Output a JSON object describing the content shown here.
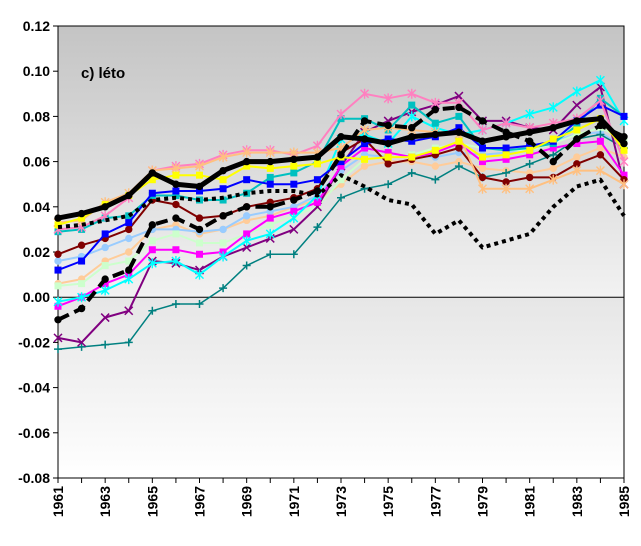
{
  "chart_data": {
    "type": "line",
    "title": "",
    "panel_label": "c) léto",
    "xlabel": "",
    "ylabel": "",
    "ylim": [
      -0.08,
      0.12
    ],
    "yticks": [
      -0.08,
      -0.06,
      -0.04,
      -0.02,
      0.0,
      0.02,
      0.04,
      0.06,
      0.08,
      0.1,
      0.12
    ],
    "ytick_labels": [
      "-0.08",
      "-0.06",
      "-0.04",
      "-0.02",
      "0.00",
      "0.02",
      "0.04",
      "0.06",
      "0.08",
      "0.10",
      "0.12"
    ],
    "x": [
      1961,
      1962,
      1963,
      1964,
      1965,
      1966,
      1967,
      1968,
      1969,
      1970,
      1971,
      1972,
      1973,
      1974,
      1975,
      1976,
      1977,
      1978,
      1979,
      1980,
      1981,
      1982,
      1983,
      1984,
      1985
    ],
    "xtick_labels": [
      "1961",
      "1963",
      "1965",
      "1967",
      "1969",
      "1971",
      "1973",
      "1975",
      "1977",
      "1979",
      "1981",
      "1983",
      "1985"
    ],
    "grid": false,
    "background_upper": "#c0c0c0",
    "background_lower": "#ffffff",
    "series": [
      {
        "color": "#000000",
        "width": 5,
        "dash": "",
        "marker": "circle",
        "values": [
          0.035,
          0.037,
          0.04,
          0.045,
          0.055,
          0.05,
          0.049,
          0.056,
          0.06,
          0.06,
          0.061,
          0.062,
          0.071,
          0.07,
          0.068,
          0.071,
          0.072,
          0.073,
          0.069,
          0.071,
          0.073,
          0.075,
          0.078,
          0.079,
          0.068
        ]
      },
      {
        "color": "#000000",
        "width": 4,
        "dash": "4,4",
        "marker": "",
        "values": [
          0.031,
          0.032,
          0.034,
          0.036,
          0.043,
          0.044,
          0.043,
          0.044,
          0.046,
          0.047,
          0.047,
          0.045,
          0.054,
          0.049,
          0.043,
          0.041,
          0.028,
          0.034,
          0.022,
          0.025,
          0.028,
          0.04,
          0.049,
          0.052,
          0.036
        ]
      },
      {
        "color": "#000000",
        "width": 4,
        "dash": "12,6",
        "marker": "circle",
        "values": [
          -0.01,
          -0.005,
          0.008,
          0.012,
          0.032,
          0.035,
          0.03,
          0.036,
          0.04,
          0.04,
          0.043,
          0.047,
          0.063,
          0.078,
          0.076,
          0.075,
          0.083,
          0.084,
          0.078,
          0.073,
          0.069,
          0.06,
          0.07,
          0.076,
          0.071
        ]
      },
      {
        "color": "#ffff00",
        "width": 2,
        "dash": "",
        "marker": "square",
        "values": [
          0.032,
          0.035,
          0.041,
          0.045,
          0.052,
          0.054,
          0.054,
          0.052,
          0.058,
          0.057,
          0.058,
          0.059,
          0.062,
          0.061,
          0.062,
          0.062,
          0.065,
          0.069,
          0.062,
          0.063,
          0.065,
          0.07,
          0.074,
          0.079,
          0.065
        ]
      },
      {
        "color": "#ffc080",
        "width": 2,
        "dash": "",
        "marker": "star",
        "values": [
          0.033,
          0.034,
          0.042,
          0.046,
          0.056,
          0.057,
          0.058,
          0.062,
          0.064,
          0.064,
          0.064,
          0.064,
          0.066,
          0.074,
          0.075,
          0.074,
          0.073,
          0.072,
          0.048,
          0.048,
          0.048,
          0.052,
          0.056,
          0.056,
          0.05
        ]
      },
      {
        "color": "#ff80c0",
        "width": 2,
        "dash": "",
        "marker": "star",
        "values": [
          0.03,
          0.031,
          0.036,
          0.044,
          0.056,
          0.058,
          0.059,
          0.063,
          0.065,
          0.065,
          0.063,
          0.067,
          0.081,
          0.09,
          0.088,
          0.09,
          0.086,
          0.086,
          0.074,
          0.077,
          0.075,
          0.077,
          0.079,
          0.087,
          0.06
        ]
      },
      {
        "color": "#0000ff",
        "width": 2,
        "dash": "",
        "marker": "square",
        "values": [
          0.012,
          0.016,
          0.028,
          0.033,
          0.046,
          0.047,
          0.047,
          0.048,
          0.052,
          0.05,
          0.05,
          0.052,
          0.06,
          0.068,
          0.07,
          0.069,
          0.071,
          0.075,
          0.066,
          0.066,
          0.067,
          0.069,
          0.078,
          0.085,
          0.08
        ]
      },
      {
        "color": "#00c0c0",
        "width": 2,
        "dash": "",
        "marker": "square",
        "values": [
          0.029,
          0.03,
          0.035,
          0.036,
          0.045,
          0.045,
          0.043,
          0.043,
          0.046,
          0.053,
          0.055,
          0.06,
          0.079,
          0.079,
          0.074,
          0.085,
          0.077,
          0.08,
          0.066,
          0.065,
          0.066,
          0.068,
          0.076,
          0.088,
          0.08
        ]
      },
      {
        "color": "#00ffff",
        "width": 2,
        "dash": "",
        "marker": "star",
        "values": [
          -0.002,
          0.0,
          0.003,
          0.008,
          0.015,
          0.016,
          0.01,
          0.018,
          0.025,
          0.028,
          0.035,
          0.045,
          0.07,
          0.072,
          0.068,
          0.08,
          0.075,
          0.072,
          0.074,
          0.077,
          0.081,
          0.084,
          0.091,
          0.096,
          0.078
        ]
      },
      {
        "color": "#800000",
        "width": 2,
        "dash": "",
        "marker": "circle",
        "values": [
          0.019,
          0.023,
          0.026,
          0.03,
          0.043,
          0.041,
          0.035,
          0.036,
          0.04,
          0.042,
          0.044,
          0.048,
          0.064,
          0.07,
          0.059,
          0.061,
          0.063,
          0.066,
          0.053,
          0.051,
          0.053,
          0.053,
          0.059,
          0.063,
          0.052
        ]
      },
      {
        "color": "#ff00ff",
        "width": 2,
        "dash": "",
        "marker": "square",
        "values": [
          -0.004,
          0.0,
          0.006,
          0.01,
          0.021,
          0.021,
          0.019,
          0.02,
          0.028,
          0.035,
          0.038,
          0.042,
          0.058,
          0.066,
          0.064,
          0.062,
          0.064,
          0.068,
          0.06,
          0.061,
          0.063,
          0.066,
          0.068,
          0.069,
          0.054
        ]
      },
      {
        "color": "#800080",
        "width": 2,
        "dash": "",
        "marker": "x",
        "values": [
          -0.018,
          -0.02,
          -0.009,
          -0.006,
          0.016,
          0.015,
          0.012,
          0.018,
          0.022,
          0.026,
          0.03,
          0.04,
          0.058,
          0.073,
          0.078,
          0.082,
          0.085,
          0.089,
          0.078,
          0.078,
          0.075,
          0.074,
          0.085,
          0.093,
          0.05
        ]
      },
      {
        "color": "#008080",
        "width": 1.5,
        "dash": "",
        "marker": "plus",
        "values": [
          -0.023,
          -0.022,
          -0.021,
          -0.02,
          -0.006,
          -0.003,
          -0.003,
          0.004,
          0.014,
          0.019,
          0.019,
          0.031,
          0.044,
          0.048,
          0.05,
          0.055,
          0.052,
          0.058,
          0.053,
          0.055,
          0.059,
          0.063,
          0.07,
          0.072,
          0.066
        ]
      },
      {
        "color": "#ccffcc",
        "width": 2,
        "dash": "",
        "marker": "square",
        "values": [
          0.005,
          0.006,
          0.014,
          0.016,
          0.025,
          0.028,
          0.024,
          0.024,
          0.028,
          0.032,
          0.036,
          0.04,
          0.052,
          0.061,
          0.062,
          0.063,
          0.066,
          0.068,
          0.066,
          0.065,
          0.065,
          0.068,
          0.072,
          0.075,
          0.07
        ]
      },
      {
        "color": "#99ccff",
        "width": 2,
        "dash": "",
        "marker": "circle",
        "values": [
          0.016,
          0.018,
          0.022,
          0.026,
          0.03,
          0.03,
          0.029,
          0.03,
          0.036,
          0.038,
          0.04,
          0.045,
          0.056,
          0.063,
          0.062,
          0.063,
          0.062,
          0.064,
          0.063,
          0.064,
          0.066,
          0.069,
          0.072,
          0.073,
          0.066
        ]
      },
      {
        "color": "#ffcc99",
        "width": 2,
        "dash": "",
        "marker": "circle",
        "values": [
          0.006,
          0.008,
          0.016,
          0.02,
          0.03,
          0.032,
          0.028,
          0.03,
          0.034,
          0.036,
          0.04,
          0.043,
          0.05,
          0.058,
          0.06,
          0.06,
          0.058,
          0.06,
          0.057,
          0.056,
          0.055,
          0.057,
          0.062,
          0.066,
          0.062
        ]
      }
    ]
  }
}
